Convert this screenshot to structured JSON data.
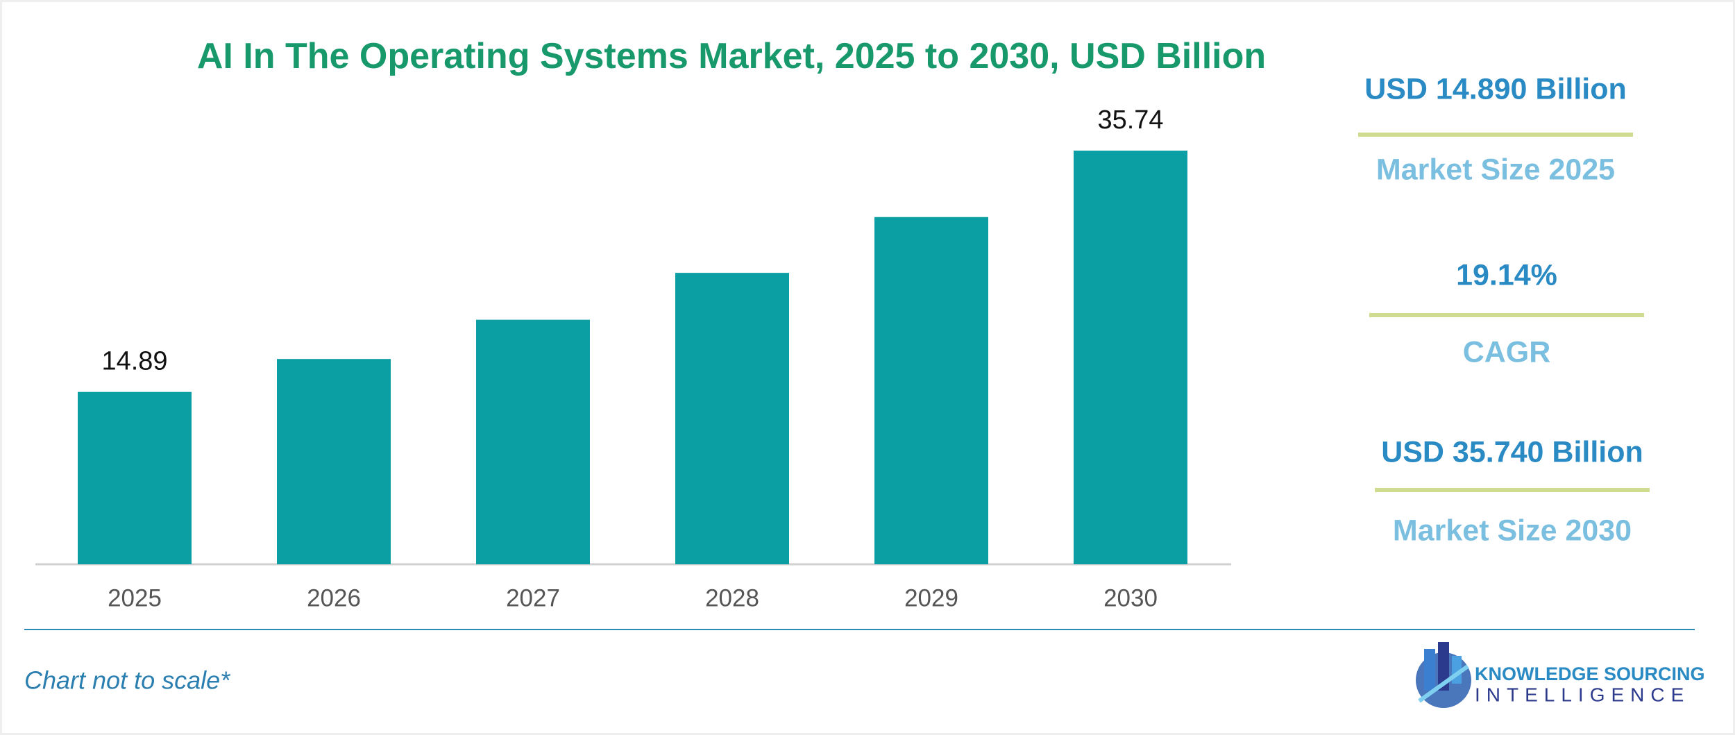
{
  "chart_data": {
    "type": "bar",
    "title": "AI In The Operating Systems Market, 2025 to 2030, USD Billion",
    "categories": [
      "2025",
      "2026",
      "2027",
      "2028",
      "2029",
      "2030"
    ],
    "values": [
      14.89,
      17.74,
      21.13,
      25.18,
      30.0,
      35.74
    ],
    "value_labels": [
      "14.89",
      null,
      null,
      null,
      null,
      "35.74"
    ],
    "color": "#0b9ea3",
    "ylim": [
      0,
      40
    ]
  },
  "stats": [
    {
      "value": "USD 14.890 Billion",
      "label": "Market Size 2025"
    },
    {
      "value": "19.14%",
      "label": "CAGR"
    },
    {
      "value": "USD 35.740 Billion",
      "label": "Market Size 2030"
    }
  ],
  "footer": {
    "note": "Chart not to scale*",
    "brand_top": "KNOWLEDGE SOURCING",
    "brand_bottom": "INTELLIGENCE"
  }
}
